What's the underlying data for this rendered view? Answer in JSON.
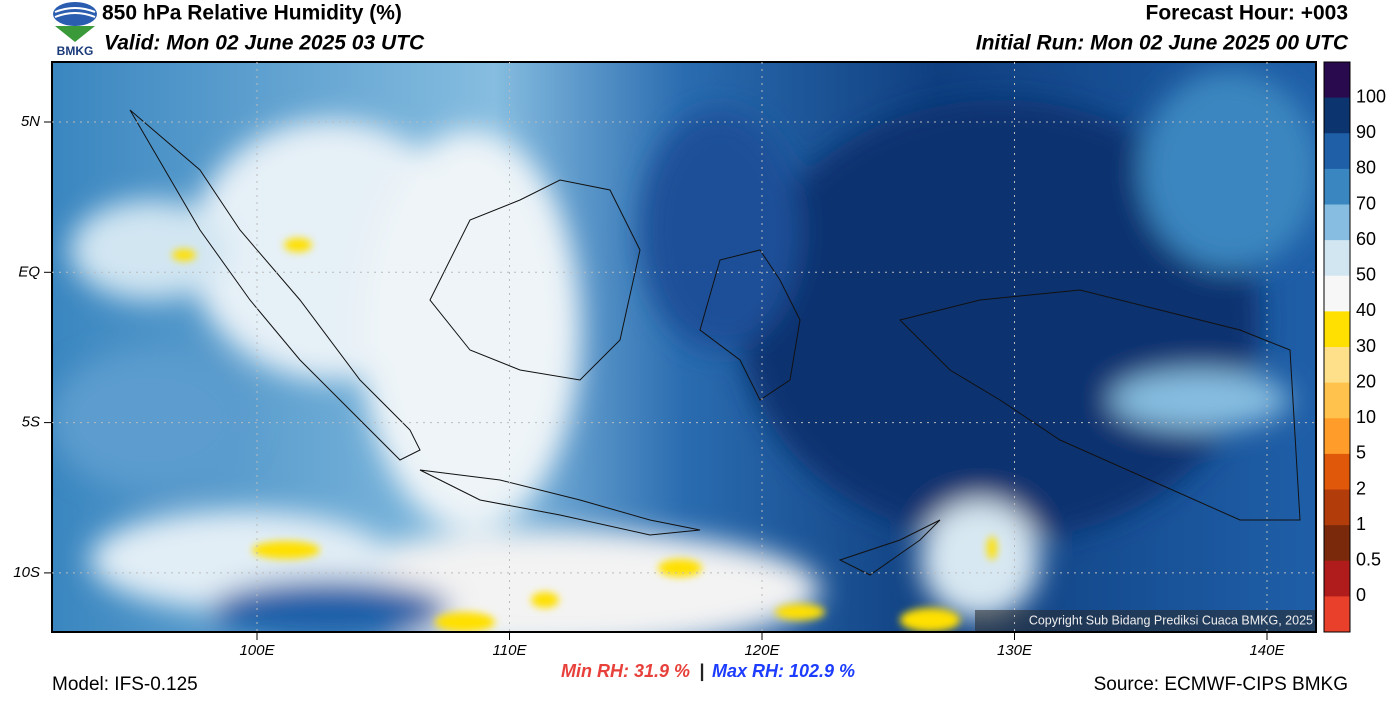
{
  "header": {
    "title": "850 hPa Relative Humidity (%)",
    "valid": "Valid: Mon 02 June 2025 03 UTC",
    "forecast_hour": "Forecast Hour: +003",
    "initial_run": "Initial Run: Mon 02 June 2025 00 UTC",
    "logo": "BMKG"
  },
  "map": {
    "lat_labels": [
      "5N",
      "EQ",
      "5S",
      "10S"
    ],
    "lon_labels": [
      "100E",
      "110E",
      "120E",
      "130E",
      "140E"
    ],
    "copyright": "Copyright Sub Bidang Prediksi Cuaca BMKG, 2025"
  },
  "colorbar": {
    "labels": [
      "100",
      "90",
      "80",
      "70",
      "60",
      "50",
      "40",
      "30",
      "20",
      "10",
      "5",
      "2",
      "1",
      "0.5",
      "0"
    ],
    "colors": [
      "#2a0a4f",
      "#0c3570",
      "#1f5fa8",
      "#3a86c0",
      "#86bde0",
      "#d2e6f2",
      "#f7f7f7",
      "#ffe000",
      "#ffe08a",
      "#ffc24d",
      "#ff9c2a",
      "#e0590a",
      "#b23c0a",
      "#7a2a0a",
      "#b01c1c",
      "#e8402a"
    ]
  },
  "footer": {
    "model": "Model: IFS-0.125",
    "min_rh": "Min RH:  31.9 %",
    "separator": "|",
    "max_rh": "Max RH: 102.9 %",
    "source": "Source: ECMWF-CIPS BMKG"
  }
}
